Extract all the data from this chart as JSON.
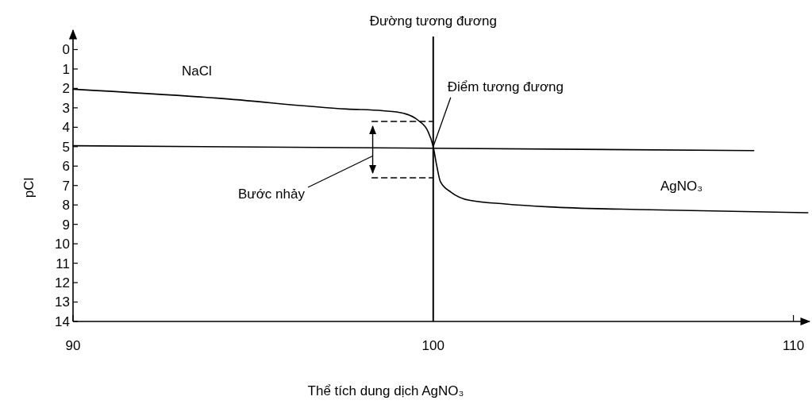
{
  "chart_data": {
    "type": "line",
    "xlabel": "Thể tích dung dịch AgNO₃",
    "ylabel": "pCl",
    "xlim": [
      90,
      110.45
    ],
    "ylim": [
      14,
      -1
    ],
    "xticks": [
      90,
      100,
      110
    ],
    "yticks": [
      0,
      1,
      2,
      3,
      4,
      5,
      6,
      7,
      8,
      9,
      10,
      11,
      12,
      13,
      14
    ],
    "grid": false,
    "series": [
      {
        "color": "#000000",
        "x": [
          90,
          94,
          97.6,
          98.6,
          99.15,
          99.6,
          99.85,
          100,
          100.1,
          100.2,
          100.5,
          101,
          102,
          103.2,
          106,
          110.4
        ],
        "values": [
          2.04,
          2.5,
          3.06,
          3.15,
          3.27,
          3.67,
          4.2,
          5,
          6,
          6.8,
          7.35,
          7.76,
          7.95,
          8.1,
          8.25,
          8.4
        ]
      },
      {
        "color": "#000000",
        "line_style": "dashed",
        "x": [
          98.3,
          100
        ],
        "values": [
          3.7,
          3.7
        ]
      },
      {
        "color": "#000000",
        "line_style": "dashed",
        "x": [
          98.3,
          100
        ],
        "values": [
          6.6,
          6.6
        ]
      },
      {
        "color": "#000000",
        "x": [
          90,
          108.9
        ],
        "values": [
          4.95,
          5.2
        ]
      }
    ],
    "ref_lines": [
      {
        "axis": "x",
        "value": 100,
        "label": "Đường tương đương",
        "color": "#000000"
      }
    ],
    "annotations": [
      "NaCl",
      "AgNO₃",
      {
        "text": "Điểm tương đương",
        "x": 100,
        "y": 5
      },
      "Bước nhảy"
    ]
  }
}
